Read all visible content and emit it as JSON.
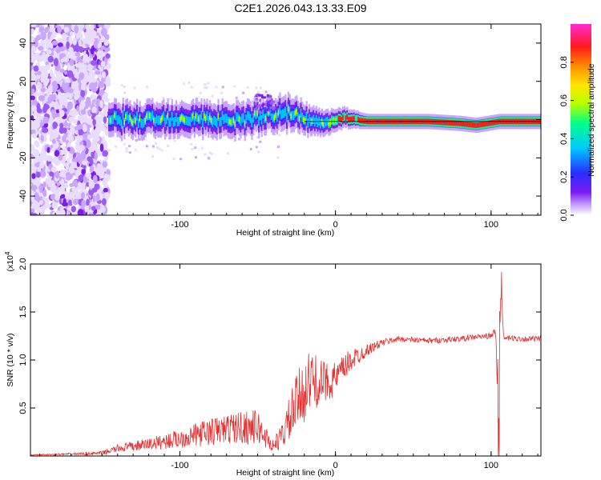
{
  "title": "C2E1.2026.043.13.33.E09",
  "colors": {
    "line": "#e83030",
    "spectrogram_palette": [
      "#ffffff",
      "#e8dcff",
      "#c9a6ff",
      "#9b59f5",
      "#7a1df0",
      "#2a2cff",
      "#00c8ff",
      "#00ff8c",
      "#b4ff00",
      "#ffe600",
      "#ff8c00",
      "#ff1a1a",
      "#ff2bd6"
    ]
  },
  "chart_data": [
    {
      "type": "heatmap",
      "name": "spectrogram",
      "xlabel": "Height of straight line (km)",
      "ylabel": "Frequency (Hz)",
      "xlim": [
        -196,
        132
      ],
      "ylim": [
        -50,
        50
      ],
      "x_ticks": [
        -100,
        0,
        100
      ],
      "x_tick_labels": [
        "-100",
        "0",
        "100"
      ],
      "y_ticks": [
        -40,
        -20,
        0,
        20,
        40
      ],
      "y_tick_labels": [
        "-40",
        "-20",
        "0",
        "20",
        "40"
      ],
      "ridge": {
        "x": [
          -145,
          -120,
          -100,
          -80,
          -60,
          -45,
          -35,
          -25,
          -15,
          -5,
          5,
          20,
          40,
          60,
          80,
          90,
          105,
          132
        ],
        "y": [
          0,
          0,
          1,
          0,
          0,
          2,
          4,
          2,
          -1,
          -1,
          1,
          -1,
          -1,
          -1,
          -2,
          -3,
          -1,
          -1
        ]
      },
      "colorbar": {
        "label": "Normalized spectral amplitude",
        "range": [
          0,
          1
        ],
        "ticks": [
          0.0,
          0.2,
          0.4,
          0.6,
          0.8
        ],
        "tick_labels": [
          "0.0",
          "0.2",
          "0.4",
          "0.6",
          "0.8"
        ]
      }
    },
    {
      "type": "line",
      "name": "snr",
      "xlabel": "Height of straight line (km)",
      "ylabel": "SNR (10 * v/v)",
      "y_multiplier": "(x10",
      "y_multiplier_exp": "4",
      "xlim": [
        -196,
        132
      ],
      "ylim": [
        0,
        2.0
      ],
      "x_ticks": [
        -100,
        0,
        100
      ],
      "x_tick_labels": [
        "-100",
        "0",
        "100"
      ],
      "y_ticks": [
        0.5,
        1.0,
        1.5,
        2.0
      ],
      "y_tick_labels": [
        "0.5",
        "1.0",
        "1.5",
        "2.0"
      ],
      "series": [
        {
          "name": "SNR",
          "x": [
            -196,
            -170,
            -150,
            -140,
            -130,
            -110,
            -100,
            -90,
            -80,
            -70,
            -60,
            -50,
            -45,
            -40,
            -35,
            -30,
            -25,
            -20,
            -15,
            -10,
            -5,
            0,
            5,
            10,
            15,
            20,
            30,
            40,
            60,
            80,
            90,
            100,
            103,
            105,
            106,
            108,
            110,
            120,
            132
          ],
          "y": [
            0.01,
            0.02,
            0.03,
            0.08,
            0.1,
            0.15,
            0.18,
            0.22,
            0.25,
            0.28,
            0.3,
            0.3,
            0.2,
            0.1,
            0.2,
            0.35,
            0.55,
            0.7,
            0.8,
            0.75,
            0.78,
            0.8,
            0.9,
            1.0,
            1.05,
            1.1,
            1.18,
            1.22,
            1.2,
            1.22,
            1.24,
            1.25,
            1.3,
            0.1,
            2.0,
            1.22,
            1.23,
            1.22,
            1.22
          ],
          "noise": [
            0.005,
            0.01,
            0.02,
            0.04,
            0.05,
            0.08,
            0.1,
            0.12,
            0.15,
            0.15,
            0.18,
            0.18,
            0.12,
            0.08,
            0.12,
            0.25,
            0.3,
            0.35,
            0.3,
            0.25,
            0.2,
            0.18,
            0.15,
            0.12,
            0.1,
            0.06,
            0.04,
            0.03,
            0.03,
            0.03,
            0.03,
            0.03,
            0.05,
            0.0,
            0.0,
            0.03,
            0.03,
            0.03,
            0.03
          ]
        }
      ]
    }
  ]
}
